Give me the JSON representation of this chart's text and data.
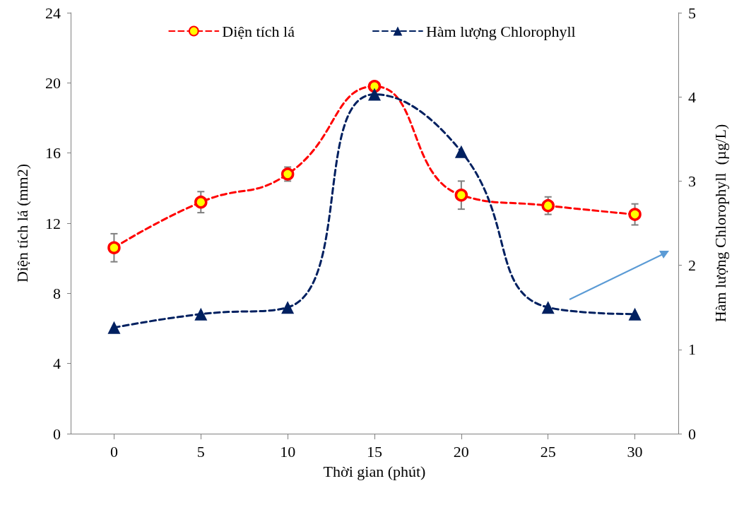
{
  "chart_data": {
    "type": "line",
    "xlabel": "Thời gian (phút)",
    "ylabel": "Diện tích lá (mm2)",
    "y2label": "Hàm lượng Chlorophyll  (µg/L)",
    "x": [
      0,
      5,
      10,
      15,
      20,
      25,
      30
    ],
    "xlim": [
      -2.5,
      32.5
    ],
    "xticks": [
      0,
      5,
      10,
      15,
      20,
      25,
      30
    ],
    "ylim": [
      0,
      24
    ],
    "yticks": [
      0,
      4,
      8,
      12,
      16,
      20,
      24
    ],
    "y2lim": [
      0,
      5
    ],
    "y2ticks": [
      0,
      1,
      2,
      3,
      4,
      5
    ],
    "series": [
      {
        "name": "Diện tích lá",
        "color": "#ff0000",
        "values": [
          10.6,
          13.2,
          14.8,
          19.8,
          13.6,
          13.0,
          12.5
        ],
        "errors": [
          0.8,
          0.6,
          0.4,
          null,
          0.8,
          0.5,
          0.6
        ],
        "marker": "circle",
        "line_style": "dashed"
      },
      {
        "name": "Hàm lượng Chlorophyll",
        "color": "#002060",
        "values": [
          1.26,
          1.42,
          1.5,
          4.03,
          3.35,
          1.5,
          1.42
        ],
        "marker": "triangle",
        "line_style": "dashed",
        "axis": "y2"
      }
    ],
    "grid": false,
    "legend": "top"
  }
}
